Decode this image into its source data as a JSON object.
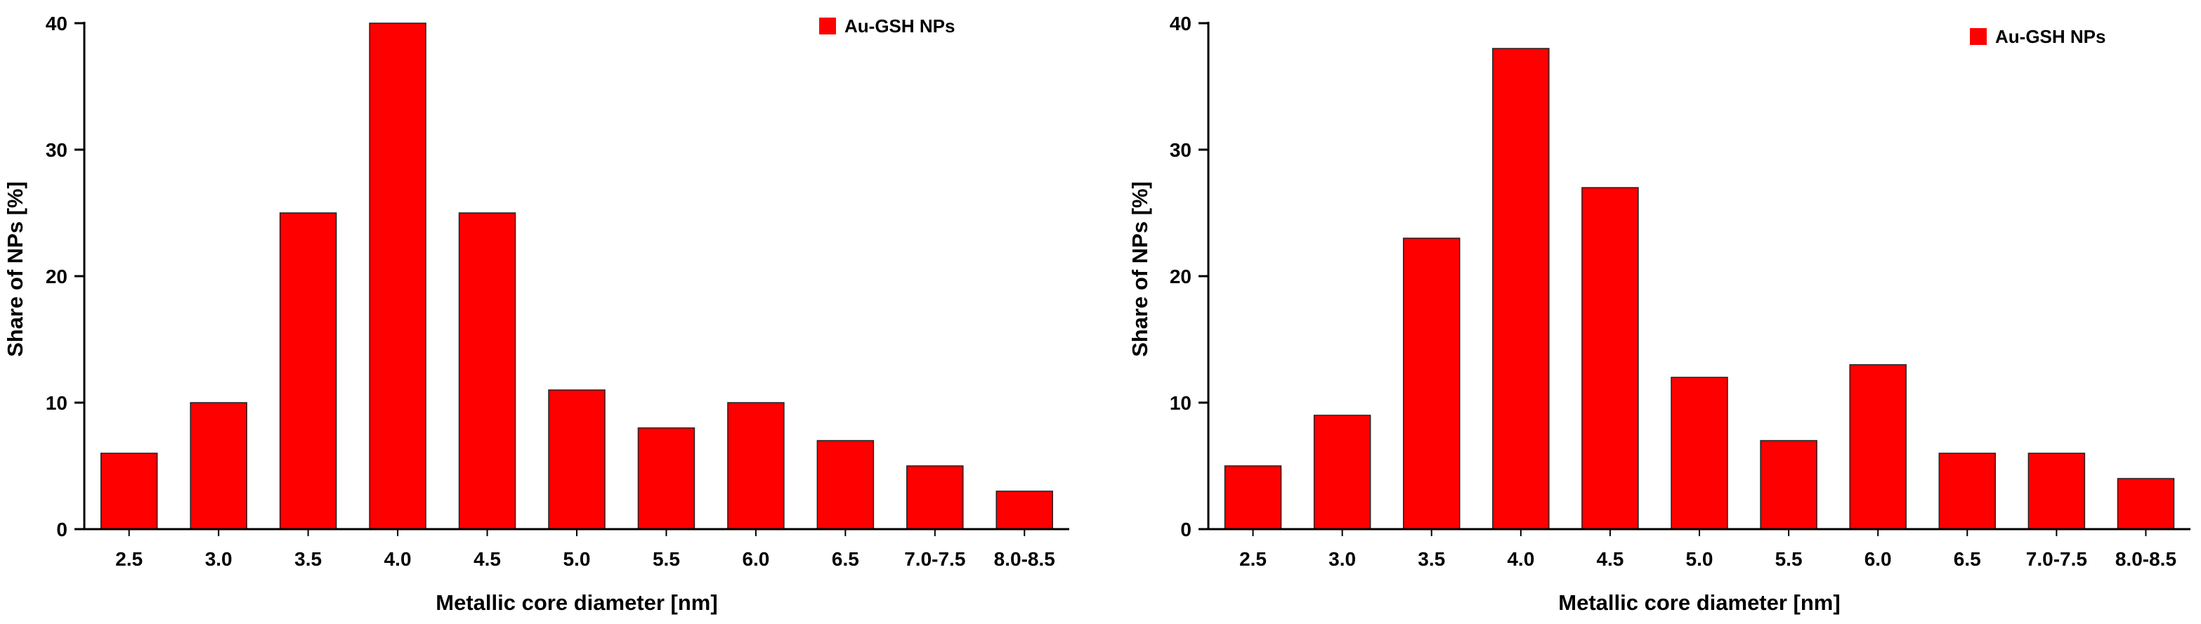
{
  "chart_data": [
    {
      "type": "bar",
      "categories": [
        "2.5",
        "3.0",
        "3.5",
        "4.0",
        "4.5",
        "5.0",
        "5.5",
        "6.0",
        "6.5",
        "7.0-7.5",
        "8.0-8.5"
      ],
      "series": [
        {
          "name": "Au-GSH NPs",
          "values": [
            6,
            10,
            25,
            40,
            25,
            11,
            8,
            10,
            7,
            5,
            3
          ]
        }
      ],
      "xlabel": "Metallic core diameter [nm]",
      "ylabel": "Share of NPs [%]",
      "ylim": [
        0,
        40
      ],
      "yticks": [
        0,
        10,
        20,
        30,
        40
      ],
      "bar_color": "#ff0000",
      "legend_position": "top-right",
      "grid": false
    },
    {
      "type": "bar",
      "categories": [
        "2.5",
        "3.0",
        "3.5",
        "4.0",
        "4.5",
        "5.0",
        "5.5",
        "6.0",
        "6.5",
        "7.0-7.5",
        "8.0-8.5"
      ],
      "series": [
        {
          "name": "Au-GSH NPs",
          "values": [
            5,
            9,
            23,
            38,
            27,
            12,
            7,
            13,
            6,
            6,
            4
          ]
        }
      ],
      "xlabel": "Metallic core diameter [nm]",
      "ylabel": "Share of NPs [%]",
      "ylim": [
        0,
        40
      ],
      "yticks": [
        0,
        10,
        20,
        30,
        40
      ],
      "bar_color": "#ff0000",
      "legend_position": "top-right",
      "grid": false
    }
  ]
}
